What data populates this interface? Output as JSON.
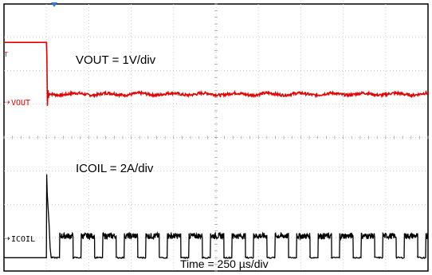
{
  "chart_data": {
    "type": "line",
    "title": "",
    "xlabel": "Time = 250 µs/div",
    "annotations": [
      "VOUT = 1V/div",
      "ICOIL = 2A/div"
    ],
    "grid": {
      "divisions_x": 10,
      "divisions_y": 8,
      "visible": true,
      "style": "dotted"
    },
    "x_unit": "µs",
    "x_per_div": 250,
    "xlim": [
      0,
      2500
    ],
    "trigger_time": 250,
    "series": [
      {
        "name": "VOUT",
        "color": "#e60000",
        "scale": "1V/div",
        "pre_trigger_level_div": 6.85,
        "post_trigger_level_div": 5.3,
        "ripple_div": 0.08
      },
      {
        "name": "ICOIL",
        "color": "#000000",
        "scale": "2A/div",
        "baseline_level_div": 0.4,
        "spike_peak_div": 2.9,
        "pulse_high_div": 1.05,
        "pulse_low_div": 0.4,
        "pulse_period_us": 127,
        "pulse_high_duration_us": 80
      }
    ]
  },
  "labels": {
    "vout_annotation": "VOUT = 1V/div",
    "icoil_annotation": "ICOIL = 2A/div",
    "time_annotation": "Time = 250 µs/div",
    "vout_channel": "VOUT",
    "icoil_channel": "ICOIL"
  },
  "marker_glyphs": {
    "channel_arrow": "⇢",
    "trigger_arrow": "▼",
    "trigger_level": "T"
  }
}
